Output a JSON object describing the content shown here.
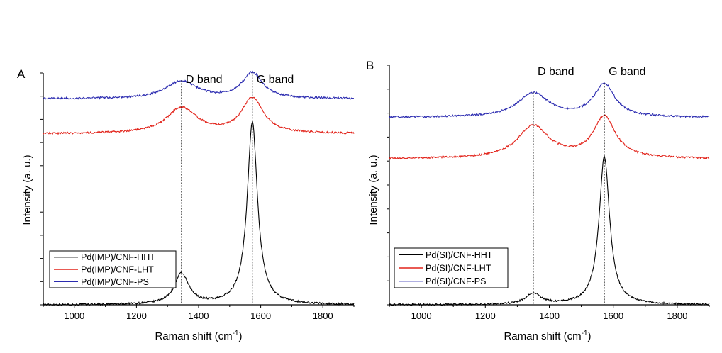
{
  "chart_data": [
    {
      "type": "line",
      "panel_label": "A",
      "xlabel": "Raman shift (cm",
      "xlabel_sup": "-1",
      "xlabel_end": ")",
      "ylabel": "Intensity (a. u.)",
      "xlim": [
        900,
        1900
      ],
      "xticks": [
        1000,
        1200,
        1400,
        1600,
        1800
      ],
      "y_tick_labels": false,
      "annotations": [
        {
          "text": "D band",
          "x": 1345
        },
        {
          "text": "G band",
          "x": 1573
        }
      ],
      "legend_placement": "bottom-left",
      "series": [
        {
          "name": "Pd(IMP)/CNF-HHT",
          "color": "#000000",
          "baseline": 0.0,
          "peaks": [
            {
              "center": 1345,
              "height": 0.13,
              "width": 28
            },
            {
              "center": 1573,
              "height": 0.78,
              "width": 20
            }
          ]
        },
        {
          "name": "Pd(IMP)/CNF-LHT",
          "color": "#e2231a",
          "baseline": 0.73,
          "peaks": [
            {
              "center": 1345,
              "height": 0.11,
              "width": 60
            },
            {
              "center": 1573,
              "height": 0.15,
              "width": 42
            }
          ]
        },
        {
          "name": "Pd(IMP)/CNF-PS",
          "color": "#2b2bb0",
          "baseline": 0.88,
          "peaks": [
            {
              "center": 1345,
              "height": 0.075,
              "width": 60
            },
            {
              "center": 1573,
              "height": 0.11,
              "width": 40
            }
          ]
        }
      ]
    },
    {
      "type": "line",
      "panel_label": "B",
      "xlabel": "Raman shift (cm",
      "xlabel_sup": "-1",
      "xlabel_end": ")",
      "ylabel": "Intensity (a. u.)",
      "xlim": [
        900,
        1900
      ],
      "xticks": [
        1000,
        1200,
        1400,
        1600,
        1800
      ],
      "y_tick_labels": false,
      "annotations": [
        {
          "text": "D band",
          "x": 1350
        },
        {
          "text": "G band",
          "x": 1572
        }
      ],
      "legend_placement": "bottom-left",
      "series": [
        {
          "name": "Pd(SI)/CNF-HHT",
          "color": "#000000",
          "baseline": 0.0,
          "peaks": [
            {
              "center": 1350,
              "height": 0.05,
              "width": 28
            },
            {
              "center": 1572,
              "height": 0.68,
              "width": 20
            }
          ]
        },
        {
          "name": "Pd(SI)/CNF-LHT",
          "color": "#e2231a",
          "baseline": 0.67,
          "peaks": [
            {
              "center": 1350,
              "height": 0.15,
              "width": 60
            },
            {
              "center": 1572,
              "height": 0.19,
              "width": 42
            }
          ]
        },
        {
          "name": "Pd(SI)/CNF-PS",
          "color": "#2b2bb0",
          "baseline": 0.86,
          "peaks": [
            {
              "center": 1350,
              "height": 0.11,
              "width": 60
            },
            {
              "center": 1572,
              "height": 0.15,
              "width": 40
            }
          ]
        }
      ]
    }
  ]
}
